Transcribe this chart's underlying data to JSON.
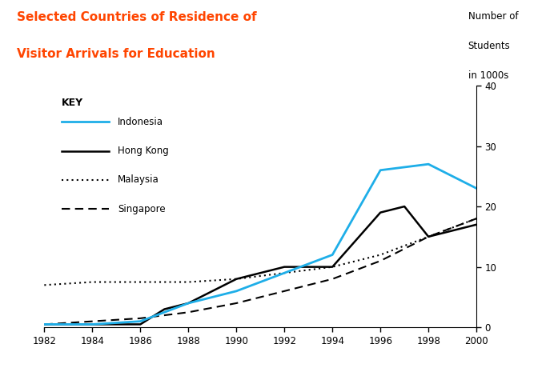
{
  "title_line1": "Selected Countries of Residence of",
  "title_line2": "Visitor Arrivals for Education",
  "title_color": "#FF4500",
  "ylabel": "Number of\nStudents\nin 1000s",
  "years": [
    1982,
    1984,
    1986,
    1988,
    1990,
    1992,
    1994,
    1996,
    1998,
    2000
  ],
  "indonesia": [
    0.5,
    0.5,
    1,
    4,
    6,
    9,
    12,
    26,
    27,
    23
  ],
  "hong_kong_x": [
    1982,
    1984,
    1986,
    1987,
    1988,
    1990,
    1992,
    1993,
    1994,
    1996,
    1997,
    1998,
    2000
  ],
  "hong_kong": [
    0.5,
    0.5,
    0.5,
    3,
    4,
    8,
    10,
    10,
    10,
    19,
    20,
    15,
    17
  ],
  "malaysia": [
    7,
    7.5,
    7.5,
    7.5,
    8,
    9,
    10,
    12,
    15,
    18
  ],
  "singapore": [
    0.5,
    1,
    1.5,
    2.5,
    4,
    6,
    8,
    11,
    15,
    18
  ],
  "ylim": [
    0,
    40
  ],
  "xlim": [
    1982,
    2000
  ],
  "yticks": [
    0,
    10,
    20,
    30,
    40
  ],
  "xticks": [
    1982,
    1984,
    1986,
    1988,
    1990,
    1992,
    1994,
    1996,
    1998,
    2000
  ],
  "indonesia_color": "#1EAEE8",
  "hong_kong_color": "#000000",
  "malaysia_color": "#000000",
  "singapore_color": "#000000",
  "background_color": "#FFFFFF",
  "key_label": "KEY"
}
